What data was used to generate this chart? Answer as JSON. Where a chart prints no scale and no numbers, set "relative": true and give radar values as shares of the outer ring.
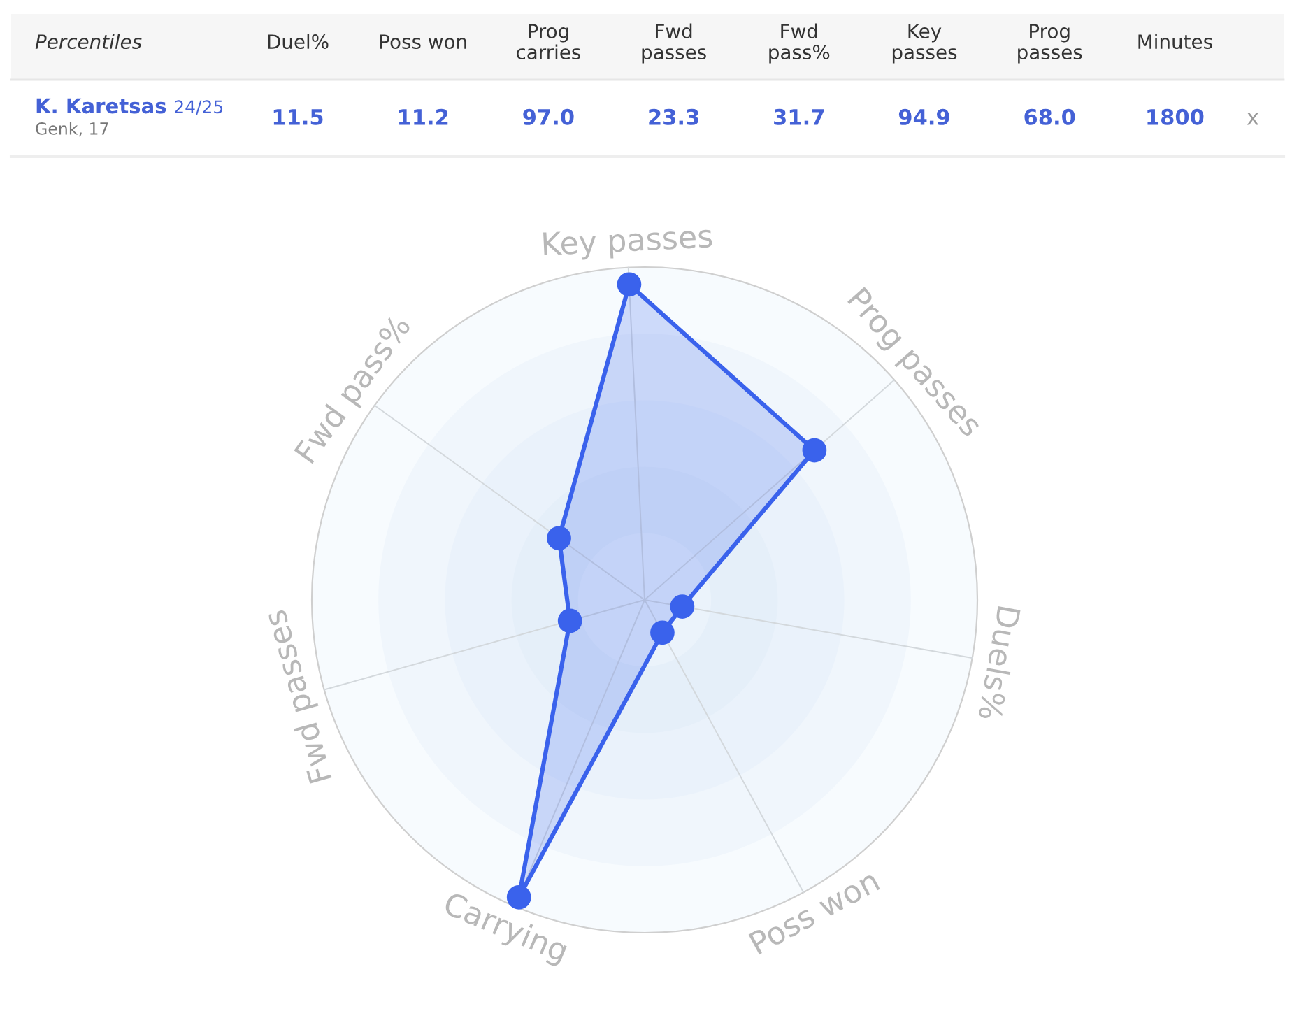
{
  "chart_data": [
    {
      "type": "other",
      "title": "Percentiles",
      "subtitle": "Genk, 17",
      "categories": [
        "Duel%",
        "Poss won",
        "Prog carries",
        "Fwd passes",
        "Fwd pass%",
        "Key passes",
        "Prog passes",
        "Minutes"
      ],
      "series": [
        {
          "name": "K. Karetsas 24/25",
          "color": "#4461d6",
          "values": [
            11.5,
            11.2,
            97.0,
            23.3,
            31.7,
            94.9,
            68.0,
            1800
          ],
          "value_labels": [
            "11.5",
            "11.2",
            "97.0",
            "23.3",
            "31.7",
            "94.9",
            "68.0",
            "1800"
          ]
        }
      ],
      "annotations": [
        "x"
      ]
    },
    {
      "type": "radar",
      "categories": [
        "Key passes",
        "Prog passes",
        "Duels%",
        "Poss won",
        "Carrying",
        "Fwd passes",
        "Fwd pass%"
      ],
      "relative": true,
      "grid": true,
      "marker": "circle",
      "series": [
        {
          "color": "#3a62ec",
          "values": [
            0.949,
            0.68,
            0.115,
            0.112,
            0.97,
            0.233,
            0.317
          ]
        }
      ]
    }
  ]
}
